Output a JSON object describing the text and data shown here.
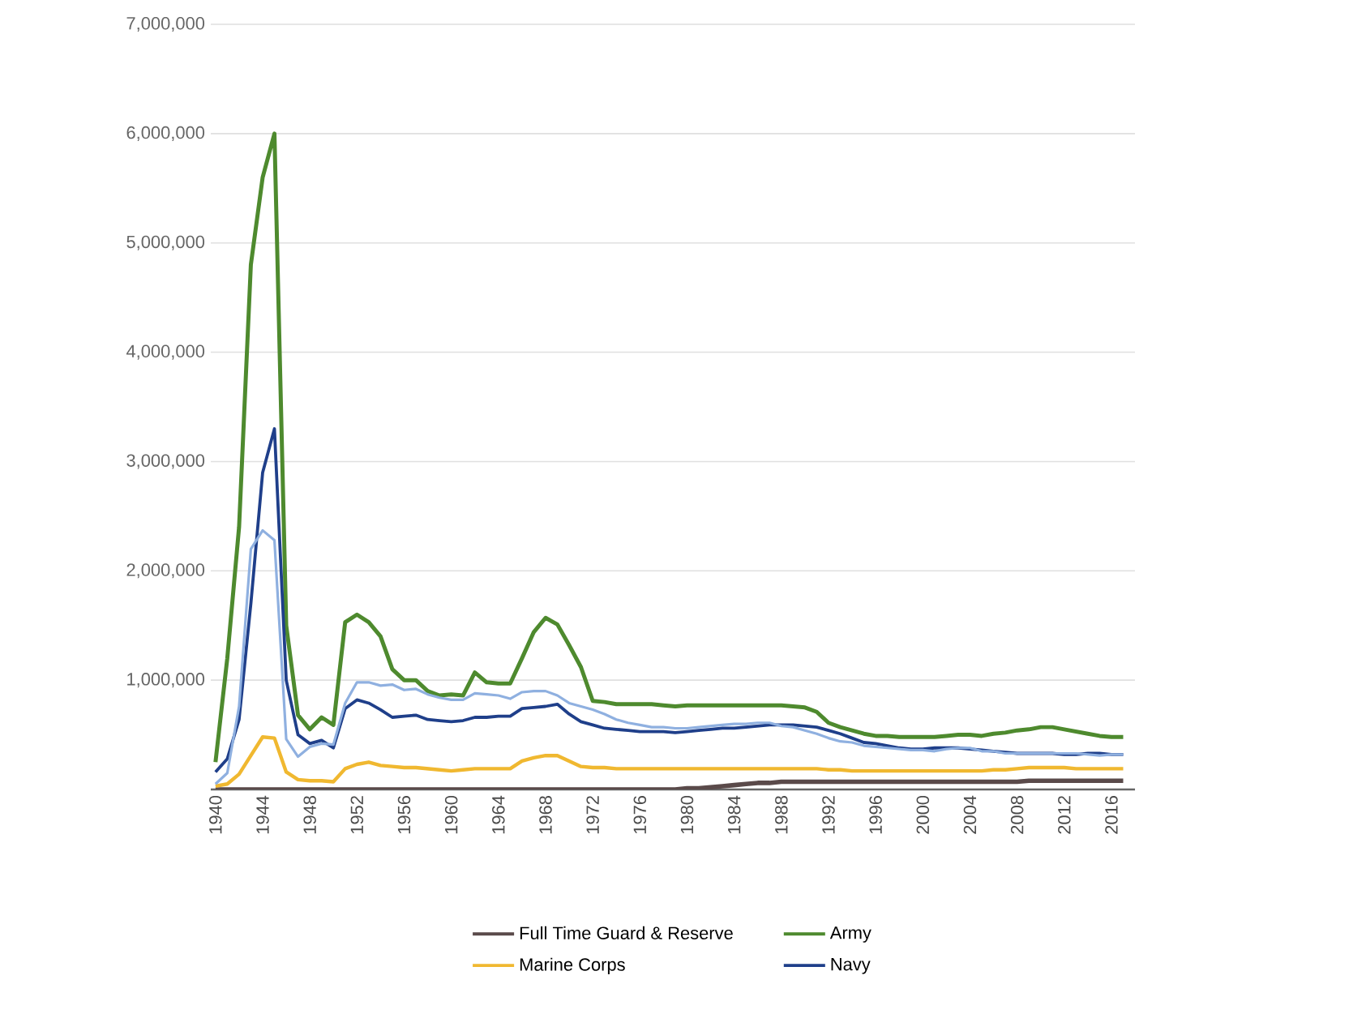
{
  "chart_data": {
    "type": "line",
    "categories": [
      "1940",
      null,
      null,
      null,
      "1944",
      null,
      null,
      null,
      "1948",
      null,
      null,
      null,
      "1952",
      null,
      null,
      null,
      "1956",
      null,
      null,
      null,
      "1960",
      null,
      null,
      null,
      "1964",
      null,
      null,
      null,
      "1968",
      null,
      null,
      null,
      "1972",
      null,
      null,
      null,
      "1976",
      null,
      null,
      null,
      "1980",
      null,
      null,
      null,
      "1984",
      null,
      null,
      null,
      "1988",
      null,
      null,
      null,
      "1992",
      null,
      null,
      null,
      "1996",
      null,
      null,
      null,
      "2000",
      null,
      null,
      null,
      "2004",
      null,
      null,
      null,
      "2008",
      null,
      null,
      null,
      "2012",
      null,
      null,
      null,
      "2016",
      null
    ],
    "series": [
      {
        "name": "Full Time Guard & Reserve",
        "color": "#5a4a4a",
        "values": [
          0,
          0,
          0,
          0,
          0,
          0,
          0,
          0,
          0,
          0,
          0,
          0,
          0,
          0,
          0,
          0,
          0,
          0,
          0,
          0,
          0,
          0,
          0,
          0,
          0,
          0,
          0,
          0,
          0,
          0,
          0,
          0,
          0,
          0,
          0,
          0,
          0,
          0,
          0,
          0,
          10000,
          10000,
          20000,
          30000,
          40000,
          50000,
          60000,
          60000,
          70000,
          70000,
          70000,
          70000,
          70000,
          70000,
          70000,
          70000,
          70000,
          70000,
          70000,
          70000,
          70000,
          70000,
          70000,
          70000,
          70000,
          70000,
          70000,
          70000,
          70000,
          80000,
          80000,
          80000,
          80000,
          80000,
          80000,
          80000,
          80000,
          80000
        ]
      },
      {
        "name": "Army",
        "color": "#4e8a2e",
        "values": [
          250000,
          1200000,
          2400000,
          4800000,
          5600000,
          6000000,
          1500000,
          680000,
          550000,
          660000,
          590000,
          1530000,
          1600000,
          1530000,
          1400000,
          1100000,
          1000000,
          1000000,
          900000,
          860000,
          870000,
          860000,
          1070000,
          980000,
          970000,
          970000,
          1200000,
          1440000,
          1570000,
          1510000,
          1320000,
          1120000,
          810000,
          800000,
          780000,
          780000,
          780000,
          780000,
          770000,
          760000,
          770000,
          770000,
          770000,
          770000,
          770000,
          770000,
          770000,
          770000,
          770000,
          760000,
          750000,
          710000,
          610000,
          570000,
          540000,
          510000,
          490000,
          490000,
          480000,
          480000,
          480000,
          480000,
          490000,
          500000,
          500000,
          490000,
          510000,
          520000,
          540000,
          550000,
          570000,
          570000,
          550000,
          530000,
          510000,
          490000,
          480000,
          480000
        ]
      },
      {
        "name": "Marine Corps",
        "color": "#f0b830",
        "values": [
          30000,
          50000,
          140000,
          310000,
          480000,
          470000,
          160000,
          90000,
          80000,
          80000,
          70000,
          190000,
          230000,
          250000,
          220000,
          210000,
          200000,
          200000,
          190000,
          180000,
          170000,
          180000,
          190000,
          190000,
          190000,
          190000,
          260000,
          290000,
          310000,
          310000,
          260000,
          210000,
          200000,
          200000,
          190000,
          190000,
          190000,
          190000,
          190000,
          190000,
          190000,
          190000,
          190000,
          190000,
          190000,
          190000,
          190000,
          190000,
          190000,
          190000,
          190000,
          190000,
          180000,
          180000,
          170000,
          170000,
          170000,
          170000,
          170000,
          170000,
          170000,
          170000,
          170000,
          170000,
          170000,
          170000,
          180000,
          180000,
          190000,
          200000,
          200000,
          200000,
          200000,
          190000,
          190000,
          190000,
          190000,
          190000
        ]
      },
      {
        "name": "Navy",
        "color": "#1f3f8a",
        "values": [
          160000,
          280000,
          640000,
          1700000,
          2900000,
          3300000,
          1000000,
          500000,
          420000,
          450000,
          380000,
          740000,
          820000,
          790000,
          730000,
          660000,
          670000,
          680000,
          640000,
          630000,
          620000,
          630000,
          660000,
          660000,
          670000,
          670000,
          740000,
          750000,
          760000,
          780000,
          690000,
          620000,
          590000,
          560000,
          550000,
          540000,
          530000,
          530000,
          530000,
          520000,
          530000,
          540000,
          550000,
          560000,
          560000,
          570000,
          580000,
          590000,
          590000,
          590000,
          580000,
          570000,
          540000,
          510000,
          470000,
          430000,
          420000,
          400000,
          380000,
          370000,
          370000,
          380000,
          380000,
          380000,
          370000,
          360000,
          350000,
          340000,
          330000,
          330000,
          330000,
          330000,
          320000,
          320000,
          330000,
          330000,
          320000,
          320000
        ]
      },
      {
        "color": "#8fb0e0",
        "values": [
          50000,
          150000,
          760000,
          2200000,
          2370000,
          2280000,
          460000,
          300000,
          390000,
          420000,
          410000,
          790000,
          980000,
          980000,
          950000,
          960000,
          910000,
          920000,
          870000,
          840000,
          820000,
          820000,
          880000,
          870000,
          860000,
          830000,
          890000,
          900000,
          900000,
          860000,
          790000,
          760000,
          730000,
          690000,
          640000,
          610000,
          590000,
          570000,
          570000,
          560000,
          560000,
          570000,
          580000,
          590000,
          600000,
          600000,
          610000,
          610000,
          580000,
          570000,
          540000,
          510000,
          470000,
          440000,
          430000,
          400000,
          390000,
          380000,
          370000,
          360000,
          360000,
          350000,
          370000,
          380000,
          380000,
          350000,
          350000,
          330000,
          330000,
          330000,
          330000,
          330000,
          330000,
          330000,
          320000,
          310000,
          320000,
          320000
        ]
      }
    ],
    "ylim": [
      0,
      7000000
    ],
    "yticks": [
      {
        "value": 0,
        "label": null
      },
      {
        "value": 1000000,
        "label": "1,000,000"
      },
      {
        "value": 2000000,
        "label": "2,000,000"
      },
      {
        "value": 3000000,
        "label": "3,000,000"
      },
      {
        "value": 4000000,
        "label": "4,000,000"
      },
      {
        "value": 5000000,
        "label": "5,000,000"
      },
      {
        "value": 6000000,
        "label": "6,000,000"
      },
      {
        "value": 7000000,
        "label": "7,000,000"
      }
    ],
    "grid": "y",
    "legend": "bottom",
    "marker": "none",
    "line_style": "solid"
  }
}
